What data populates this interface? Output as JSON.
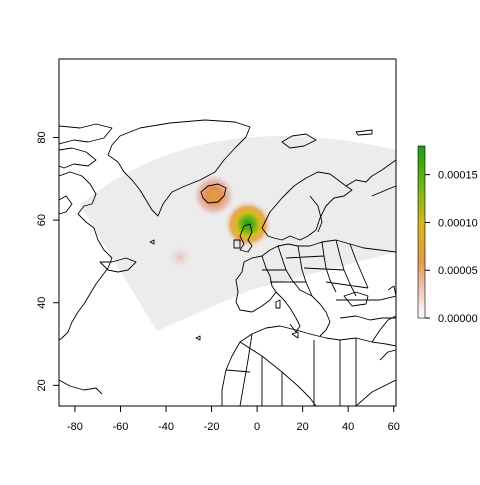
{
  "chart_data": {
    "type": "heatmap",
    "title": "",
    "xlabel": "",
    "ylabel": "",
    "xlim": [
      -87,
      61
    ],
    "ylim": [
      15,
      99
    ],
    "x_ticks": [
      -80,
      -60,
      -40,
      -20,
      0,
      20,
      40,
      60
    ],
    "y_ticks": [
      20,
      40,
      60,
      80
    ],
    "x_tick_labels": [
      "-80",
      "-60",
      "-40",
      "-20",
      "0",
      "20",
      "40",
      "60"
    ],
    "y_tick_labels": [
      "20",
      "40",
      "60",
      "80"
    ],
    "hotspots": [
      {
        "lon": -4,
        "lat": 59,
        "value": 0.00018
      },
      {
        "lon": -19,
        "lat": 66,
        "value": 5e-05
      },
      {
        "lon": -34,
        "lat": 51,
        "value": 1.5e-05
      }
    ],
    "colorbar": {
      "min": 0,
      "max": 0.00018,
      "ticks": [
        0,
        5e-05,
        0.0001,
        0.00015
      ],
      "tick_labels": [
        "0.00000",
        "0.00005",
        "0.00010",
        "0.00015"
      ],
      "colors": [
        "#ffffff",
        "#e9b4a9",
        "#dd8a37",
        "#cfc31a",
        "#5cb21a",
        "#1c9e1b"
      ]
    },
    "domain_fill": "#ececec"
  }
}
